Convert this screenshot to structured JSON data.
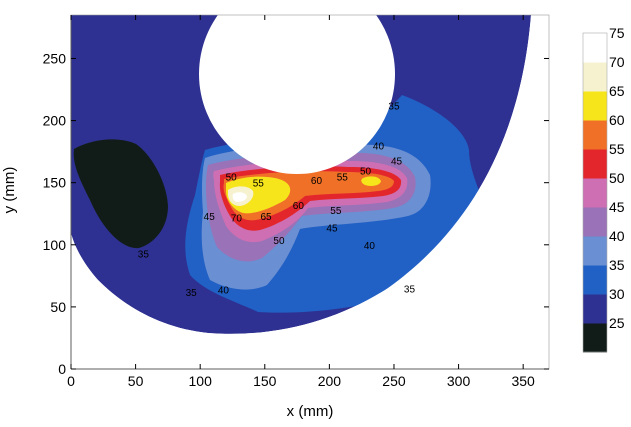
{
  "chart_data": {
    "type": "heatmap",
    "xlabel": "x (mm)",
    "ylabel": "y (mm)",
    "xlim": [
      0,
      370
    ],
    "ylim": [
      0,
      285
    ],
    "x_ticks": [
      "0",
      "50",
      "100",
      "150",
      "200",
      "250",
      "300",
      "350"
    ],
    "y_ticks": [
      "0",
      "50",
      "100",
      "150",
      "200",
      "250"
    ],
    "colorbar": {
      "levels": [
        "25",
        "30",
        "35",
        "40",
        "45",
        "50",
        "55",
        "60",
        "65",
        "70",
        "75"
      ],
      "bands": [
        {
          "from": 25,
          "to": 30,
          "color": "#111c18"
        },
        {
          "from": 30,
          "to": 35,
          "color": "#2e3191"
        },
        {
          "from": 35,
          "to": 40,
          "color": "#2160c4"
        },
        {
          "from": 40,
          "to": 45,
          "color": "#6a8fd2"
        },
        {
          "from": 45,
          "to": 50,
          "color": "#9a72b8"
        },
        {
          "from": 50,
          "to": 55,
          "color": "#cd6fb2"
        },
        {
          "from": 55,
          "to": 60,
          "color": "#e2262c"
        },
        {
          "from": 60,
          "to": 65,
          "color": "#f07028"
        },
        {
          "from": 65,
          "to": 70,
          "color": "#f7e51b"
        },
        {
          "from": 70,
          "to": 75,
          "color": "#f6f2cf"
        },
        {
          "from": 75,
          "to": 80,
          "color": "#ffffff"
        }
      ]
    },
    "contour_labels": [
      {
        "text": "35",
        "x": 250,
        "y": 212
      },
      {
        "text": "40",
        "x": 238,
        "y": 180
      },
      {
        "text": "45",
        "x": 252,
        "y": 168
      },
      {
        "text": "50",
        "x": 228,
        "y": 160
      },
      {
        "text": "55",
        "x": 210,
        "y": 155
      },
      {
        "text": "60",
        "x": 190,
        "y": 152
      },
      {
        "text": "50",
        "x": 124,
        "y": 155
      },
      {
        "text": "55",
        "x": 145,
        "y": 150
      },
      {
        "text": "45",
        "x": 107,
        "y": 123
      },
      {
        "text": "70",
        "x": 128,
        "y": 122
      },
      {
        "text": "65",
        "x": 151,
        "y": 123
      },
      {
        "text": "60",
        "x": 176,
        "y": 132
      },
      {
        "text": "55",
        "x": 205,
        "y": 128
      },
      {
        "text": "50",
        "x": 161,
        "y": 104
      },
      {
        "text": "45",
        "x": 202,
        "y": 114
      },
      {
        "text": "40",
        "x": 231,
        "y": 100
      },
      {
        "text": "40",
        "x": 118,
        "y": 64
      },
      {
        "text": "35",
        "x": 93,
        "y": 62
      },
      {
        "text": "35",
        "x": 262,
        "y": 65
      },
      {
        "text": "35",
        "x": 56,
        "y": 93
      }
    ]
  }
}
